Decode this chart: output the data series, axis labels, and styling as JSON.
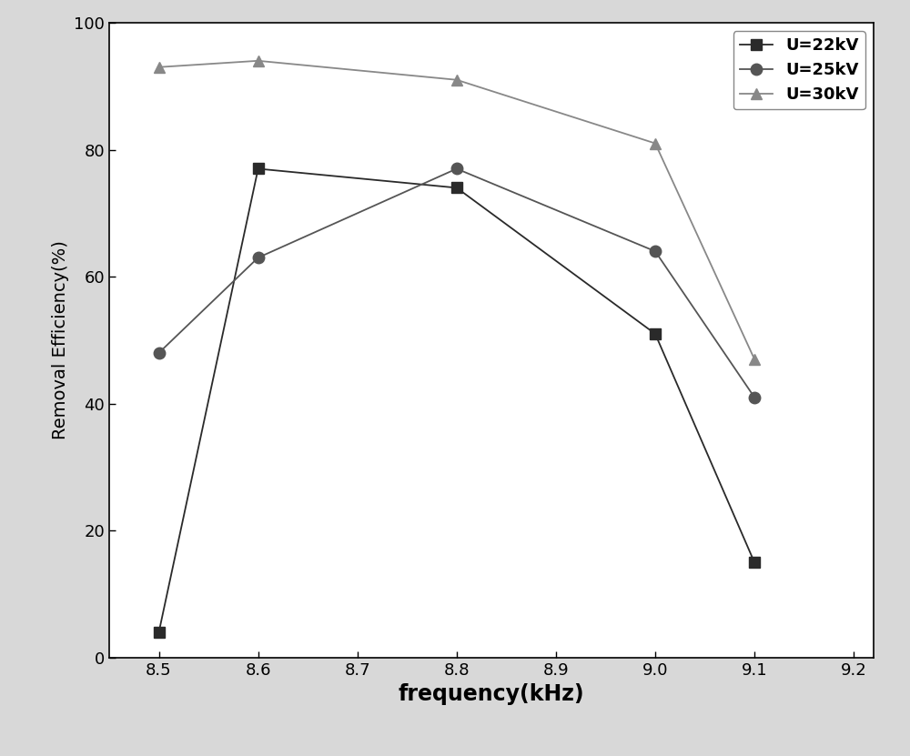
{
  "series": [
    {
      "label": "U=22kV",
      "x": [
        8.5,
        8.6,
        8.8,
        9.0,
        9.1
      ],
      "y": [
        4,
        77,
        74,
        51,
        15
      ],
      "color": "#2a2a2a",
      "marker": "s",
      "markersize": 8
    },
    {
      "label": "U=25kV",
      "x": [
        8.5,
        8.6,
        8.8,
        9.0,
        9.1
      ],
      "y": [
        48,
        63,
        77,
        64,
        41
      ],
      "color": "#555555",
      "marker": "o",
      "markersize": 9
    },
    {
      "label": "U=30kV",
      "x": [
        8.5,
        8.6,
        8.8,
        9.0,
        9.1
      ],
      "y": [
        93,
        94,
        91,
        81,
        47
      ],
      "color": "#888888",
      "marker": "^",
      "markersize": 9
    }
  ],
  "xlabel": "frequency(kHz)",
  "ylabel": "Removal Efficiency(%)",
  "xlim": [
    8.45,
    9.22
  ],
  "ylim": [
    0,
    100
  ],
  "xticks": [
    8.5,
    8.6,
    8.7,
    8.8,
    8.9,
    9.0,
    9.1,
    9.2
  ],
  "yticks": [
    0,
    20,
    40,
    60,
    80,
    100
  ],
  "legend_loc": "upper right",
  "xlabel_fontsize": 17,
  "ylabel_fontsize": 14,
  "tick_fontsize": 13,
  "legend_fontsize": 13,
  "linewidth": 1.3,
  "figure_width": 10.0,
  "figure_height": 8.31,
  "figure_bg": "#d8d8d8",
  "plot_bg": "#ffffff"
}
